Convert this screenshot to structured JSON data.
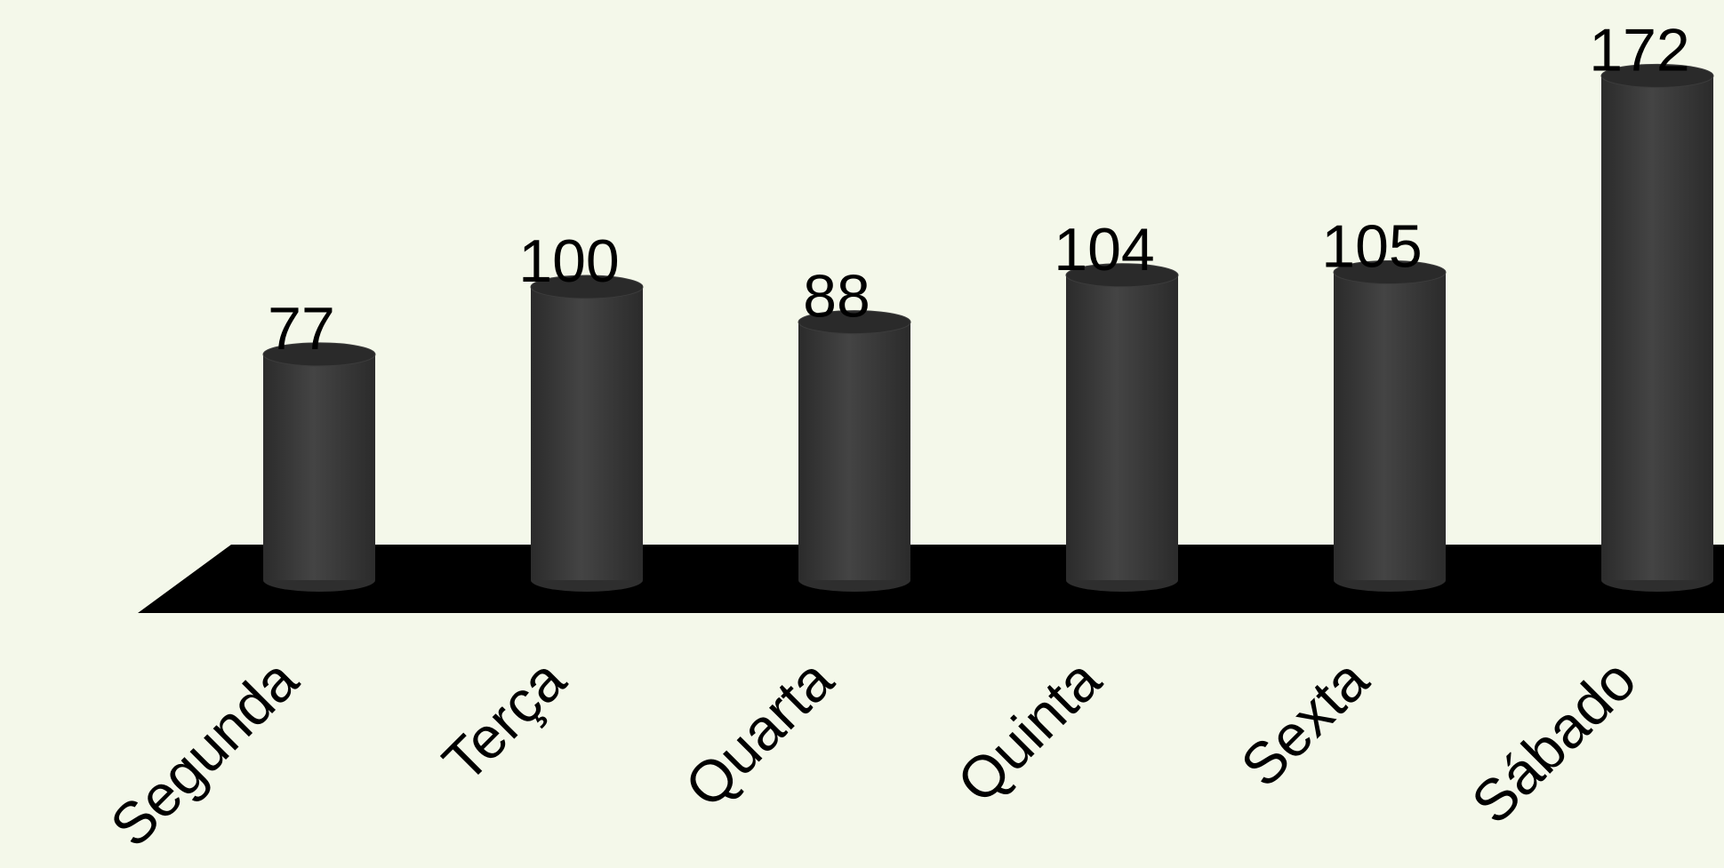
{
  "chart_data": {
    "type": "bar",
    "style": "3d-cylinder",
    "categories": [
      "Segunda",
      "Terça",
      "Quarta",
      "Quinta",
      "Sexta",
      "Sábado"
    ],
    "values": [
      77,
      100,
      88,
      104,
      105,
      172
    ],
    "data_labels": [
      "77",
      "100",
      "88",
      "104",
      "105",
      "172"
    ],
    "title": "",
    "xlabel": "",
    "ylabel": "",
    "ylim": [
      0,
      180
    ],
    "grid": false,
    "legend": "none",
    "colors": {
      "background": "#f4f8ea",
      "bar": "#3a3a3a",
      "bar_top": "#2a2a2a",
      "floor": "#000000"
    }
  }
}
